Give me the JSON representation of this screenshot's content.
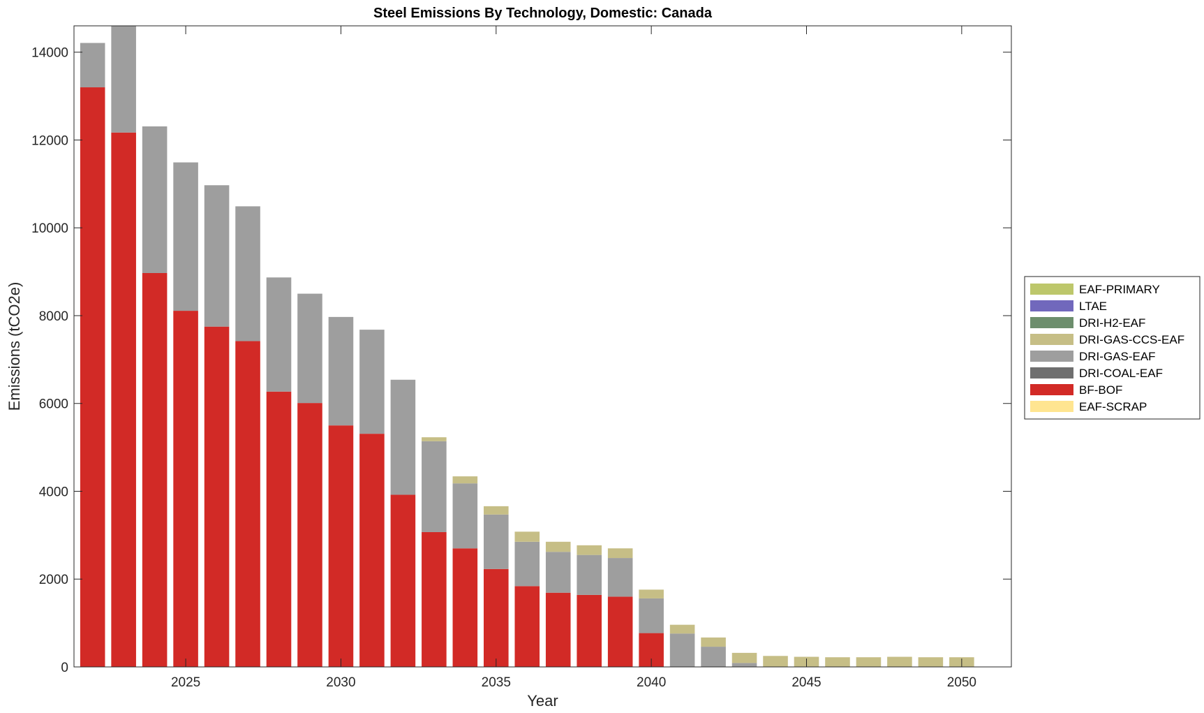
{
  "chart_data": {
    "type": "bar",
    "stacked": true,
    "title": "Steel Emissions By Technology, Domestic: Canada",
    "xlabel": "Year",
    "ylabel": "Emissions (tCO2e)",
    "ylim": [
      0,
      14600
    ],
    "xlim": [
      2021.4,
      2051.6
    ],
    "yticks": [
      0,
      2000,
      4000,
      6000,
      8000,
      10000,
      12000,
      14000
    ],
    "xticks": [
      2025,
      2030,
      2035,
      2040,
      2045,
      2050
    ],
    "grid": false,
    "legend_position": "right",
    "categories": [
      2022,
      2023,
      2024,
      2025,
      2026,
      2027,
      2028,
      2029,
      2030,
      2031,
      2032,
      2033,
      2034,
      2035,
      2036,
      2037,
      2038,
      2039,
      2040,
      2041,
      2042,
      2043,
      2044,
      2045,
      2046,
      2047,
      2048,
      2049,
      2050
    ],
    "series": [
      {
        "name": "EAF-SCRAP",
        "color": "#FFE591",
        "values": [
          0,
          0,
          0,
          0,
          0,
          0,
          0,
          0,
          0,
          0,
          0,
          0,
          0,
          0,
          0,
          0,
          0,
          0,
          0,
          0,
          0,
          0,
          0,
          0,
          0,
          0,
          0,
          0,
          0
        ]
      },
      {
        "name": "BF-BOF",
        "color": "#D22A26",
        "values": [
          13200,
          12170,
          8970,
          8110,
          7750,
          7420,
          6270,
          6010,
          5500,
          5310,
          3920,
          3070,
          2700,
          2230,
          1840,
          1690,
          1640,
          1600,
          770,
          0,
          0,
          0,
          0,
          0,
          0,
          0,
          0,
          0,
          0
        ]
      },
      {
        "name": "DRI-COAL-EAF",
        "color": "#6F6F6F",
        "values": [
          0,
          0,
          0,
          0,
          0,
          0,
          0,
          0,
          0,
          0,
          0,
          0,
          0,
          0,
          0,
          0,
          0,
          0,
          0,
          0,
          0,
          0,
          0,
          0,
          0,
          0,
          0,
          0,
          0
        ]
      },
      {
        "name": "DRI-GAS-EAF",
        "color": "#9E9E9E",
        "values": [
          1010,
          2470,
          3340,
          3380,
          3220,
          3070,
          2600,
          2490,
          2470,
          2370,
          2620,
          2070,
          1480,
          1240,
          1010,
          930,
          910,
          880,
          790,
          760,
          460,
          90,
          0,
          0,
          0,
          0,
          0,
          0,
          0
        ]
      },
      {
        "name": "DRI-GAS-CCS-EAF",
        "color": "#C6BE86",
        "values": [
          0,
          0,
          0,
          0,
          0,
          0,
          0,
          0,
          0,
          0,
          0,
          90,
          160,
          190,
          230,
          230,
          220,
          220,
          200,
          200,
          210,
          230,
          250,
          230,
          220,
          220,
          230,
          220,
          220
        ]
      },
      {
        "name": "DRI-H2-EAF",
        "color": "#6D8E6D",
        "values": [
          0,
          0,
          0,
          0,
          0,
          0,
          0,
          0,
          0,
          0,
          0,
          0,
          0,
          0,
          0,
          0,
          0,
          0,
          0,
          0,
          0,
          0,
          0,
          0,
          0,
          0,
          0,
          0,
          0
        ]
      },
      {
        "name": "LTAE",
        "color": "#7168BC",
        "values": [
          0,
          0,
          0,
          0,
          0,
          0,
          0,
          0,
          0,
          0,
          0,
          0,
          0,
          0,
          0,
          0,
          0,
          0,
          0,
          0,
          0,
          0,
          0,
          0,
          0,
          0,
          0,
          0,
          0
        ]
      },
      {
        "name": "EAF-PRIMARY",
        "color": "#BDC76B",
        "values": [
          0,
          0,
          0,
          0,
          0,
          0,
          0,
          0,
          0,
          0,
          0,
          0,
          0,
          0,
          0,
          0,
          0,
          0,
          0,
          0,
          0,
          0,
          0,
          0,
          0,
          0,
          0,
          0,
          0
        ]
      }
    ],
    "legend_order": [
      "EAF-PRIMARY",
      "LTAE",
      "DRI-H2-EAF",
      "DRI-GAS-CCS-EAF",
      "DRI-GAS-EAF",
      "DRI-COAL-EAF",
      "BF-BOF",
      "EAF-SCRAP"
    ]
  }
}
